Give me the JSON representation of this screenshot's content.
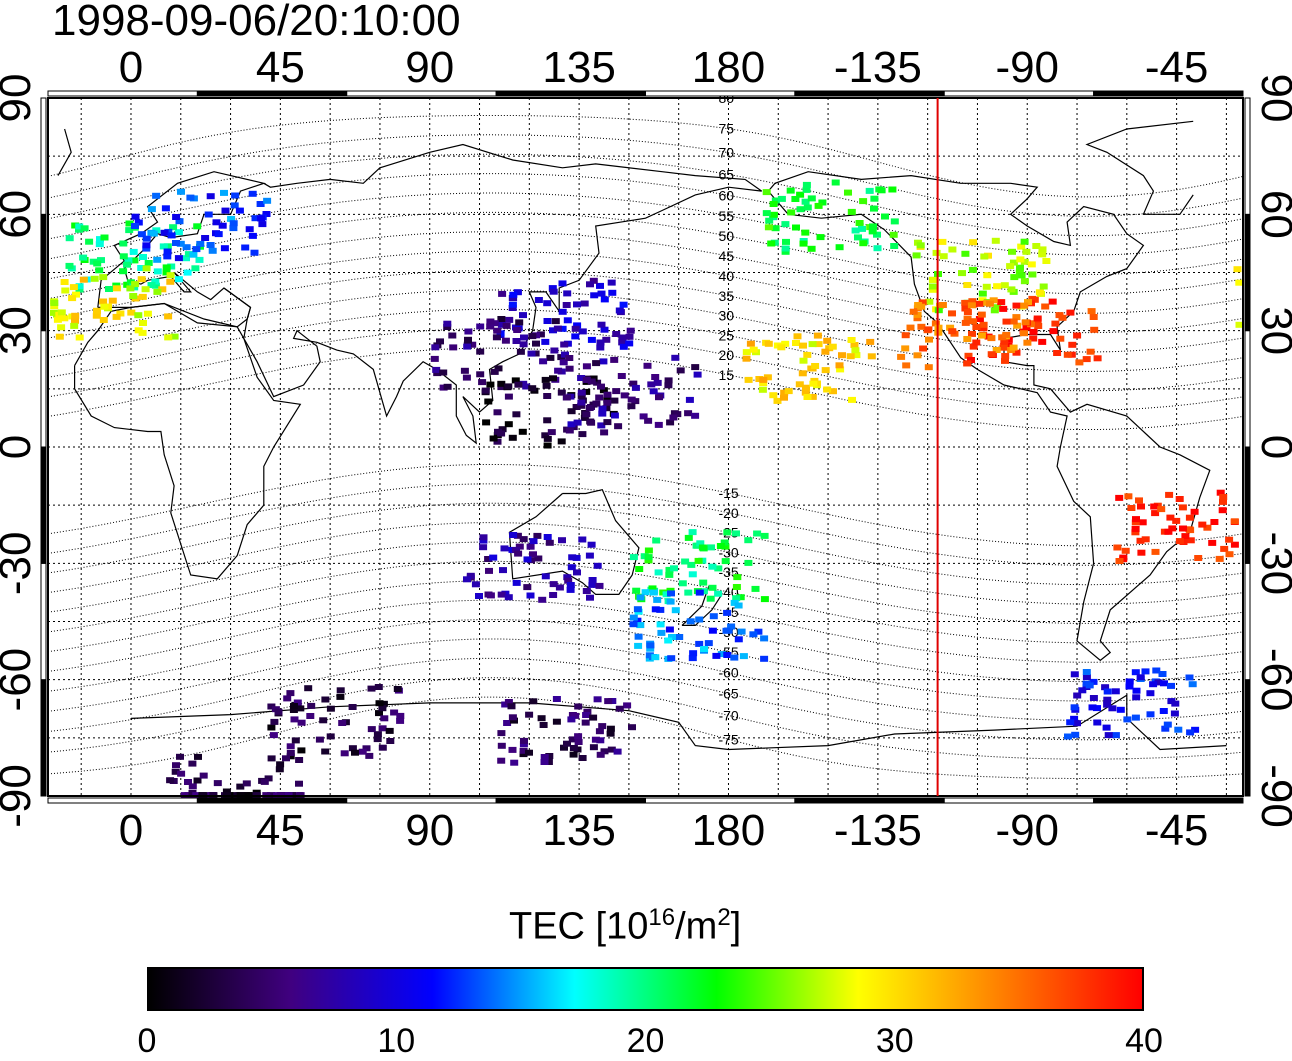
{
  "title": "1998-09-06/20:10:00",
  "map": {
    "projection": "equirectangular",
    "lon_center": 180,
    "lon_range": [
      -25,
      335
    ],
    "lat_range": [
      -90,
      90
    ],
    "top_lon_ticks": [
      "0",
      "45",
      "90",
      "135",
      "180",
      "-135",
      "-90",
      "-45"
    ],
    "bottom_lon_ticks": [
      "0",
      "45",
      "90",
      "135",
      "180",
      "-135",
      "-90",
      "-45"
    ],
    "left_lat_ticks": [
      "90",
      "60",
      "30",
      "0",
      "-30",
      "-60",
      "-90"
    ],
    "right_lat_ticks": [
      "90",
      "60",
      "30",
      "0",
      "-30",
      "-60",
      "-90"
    ],
    "magnetic_latitude_labels": [
      "80",
      "75",
      "70",
      "65",
      "60",
      "55",
      "50",
      "45",
      "40",
      "35",
      "30",
      "25",
      "20",
      "15",
      "-15",
      "-20",
      "-25",
      "-30",
      "-35",
      "-40",
      "-45",
      "-50",
      "-55",
      "-60",
      "-65",
      "-70",
      "-75"
    ],
    "terminator_line_color": "#e00000",
    "terminator_lon": -117,
    "grid": true
  },
  "colorbar": {
    "label": "TEC  [10",
    "label_sup1": "16",
    "label_mid": "/m",
    "label_sup2": "2",
    "label_end": "]",
    "min": 0,
    "max": 40,
    "tick_labels": [
      "0",
      "10",
      "20",
      "30",
      "40"
    ],
    "colors": [
      "#000000",
      "#400080",
      "#0000ff",
      "#00ffff",
      "#00ff00",
      "#ffff00",
      "#ff8000",
      "#ff0000"
    ]
  },
  "chart_data": {
    "type": "heatmap",
    "title": "1998-09-06/20:10:00",
    "xlabel": "",
    "ylabel": "",
    "xlim": [
      -25,
      335
    ],
    "ylim": [
      -90,
      90
    ],
    "value_range": [
      0,
      40
    ],
    "regions": [
      {
        "lon": 0,
        "lat": 50,
        "tec": 20
      },
      {
        "lon": 20,
        "lat": 58,
        "tec": 13
      },
      {
        "lon": -8,
        "lat": 38,
        "tec": 29
      },
      {
        "lon": 130,
        "lat": 35,
        "tec": 9
      },
      {
        "lon": 110,
        "lat": 25,
        "tec": 5
      },
      {
        "lon": 125,
        "lat": 10,
        "tec": 2
      },
      {
        "lon": 150,
        "lat": 15,
        "tec": 6
      },
      {
        "lon": 170,
        "lat": -30,
        "tec": 21
      },
      {
        "lon": 120,
        "lat": -30,
        "tec": 7
      },
      {
        "lon": 170,
        "lat": -45,
        "tec": 14
      },
      {
        "lon": -105,
        "lat": 45,
        "tec": 27
      },
      {
        "lon": -90,
        "lat": 30,
        "tec": 38
      },
      {
        "lon": -110,
        "lat": 30,
        "tec": 35
      },
      {
        "lon": -150,
        "lat": 60,
        "tec": 22
      },
      {
        "lon": -157,
        "lat": 21,
        "tec": 30
      },
      {
        "lon": -45,
        "lat": -20,
        "tec": 39
      },
      {
        "lon": -60,
        "lat": -65,
        "tec": 11
      },
      {
        "lon": 60,
        "lat": -70,
        "tec": 3
      },
      {
        "lon": 130,
        "lat": -72,
        "tec": 4
      },
      {
        "lon": 30,
        "lat": -88,
        "tec": 3
      }
    ]
  }
}
